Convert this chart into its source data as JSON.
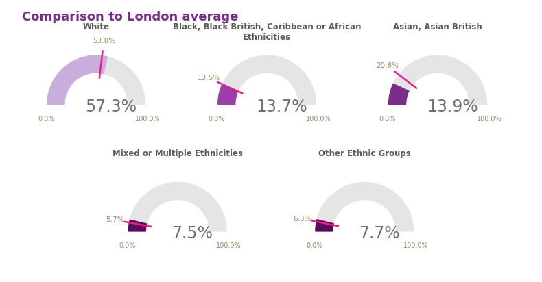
{
  "title": "Comparison to London average",
  "title_color": "#7B2D8B",
  "background_color": "#FFFFFF",
  "border_color": "#9B59B6",
  "charts": [
    {
      "label": "White",
      "ward_value": 57.3,
      "london_value": 53.8,
      "ward_color": "#C9AEDD",
      "london_color": "#E91E8C",
      "value_color": "#7B6E6E",
      "label_color": "#5B5B5B",
      "row": 0,
      "col": 0
    },
    {
      "label": "Black, Black British, Caribbean or African\nEthnicities",
      "ward_value": 13.7,
      "london_value": 13.5,
      "ward_color": "#9B3DAB",
      "london_color": "#E91E8C",
      "value_color": "#7B6E6E",
      "label_color": "#5B5B5B",
      "row": 0,
      "col": 1
    },
    {
      "label": "Asian, Asian British",
      "ward_value": 13.9,
      "london_value": 20.8,
      "ward_color": "#7B2D8B",
      "london_color": "#E91E8C",
      "value_color": "#7B6E6E",
      "label_color": "#5B5B5B",
      "row": 0,
      "col": 2
    },
    {
      "label": "Mixed or Multiple Ethnicities",
      "ward_value": 7.5,
      "london_value": 5.7,
      "ward_color": "#5A0A5A",
      "london_color": "#E91E8C",
      "value_color": "#7B6E6E",
      "label_color": "#5B5B5B",
      "row": 1,
      "col": 0
    },
    {
      "label": "Other Ethnic Groups",
      "ward_value": 7.7,
      "london_value": 6.3,
      "ward_color": "#5A0A5A",
      "london_color": "#E91E8C",
      "value_color": "#7B6E6E",
      "label_color": "#5B5B5B",
      "row": 1,
      "col": 1
    }
  ],
  "gauge_bg_color": "#E5E5E5",
  "tick_color": "#9B8B6B",
  "tick_fontsize": 7,
  "value_fontsize": 17,
  "label_fontsize": 8.5
}
